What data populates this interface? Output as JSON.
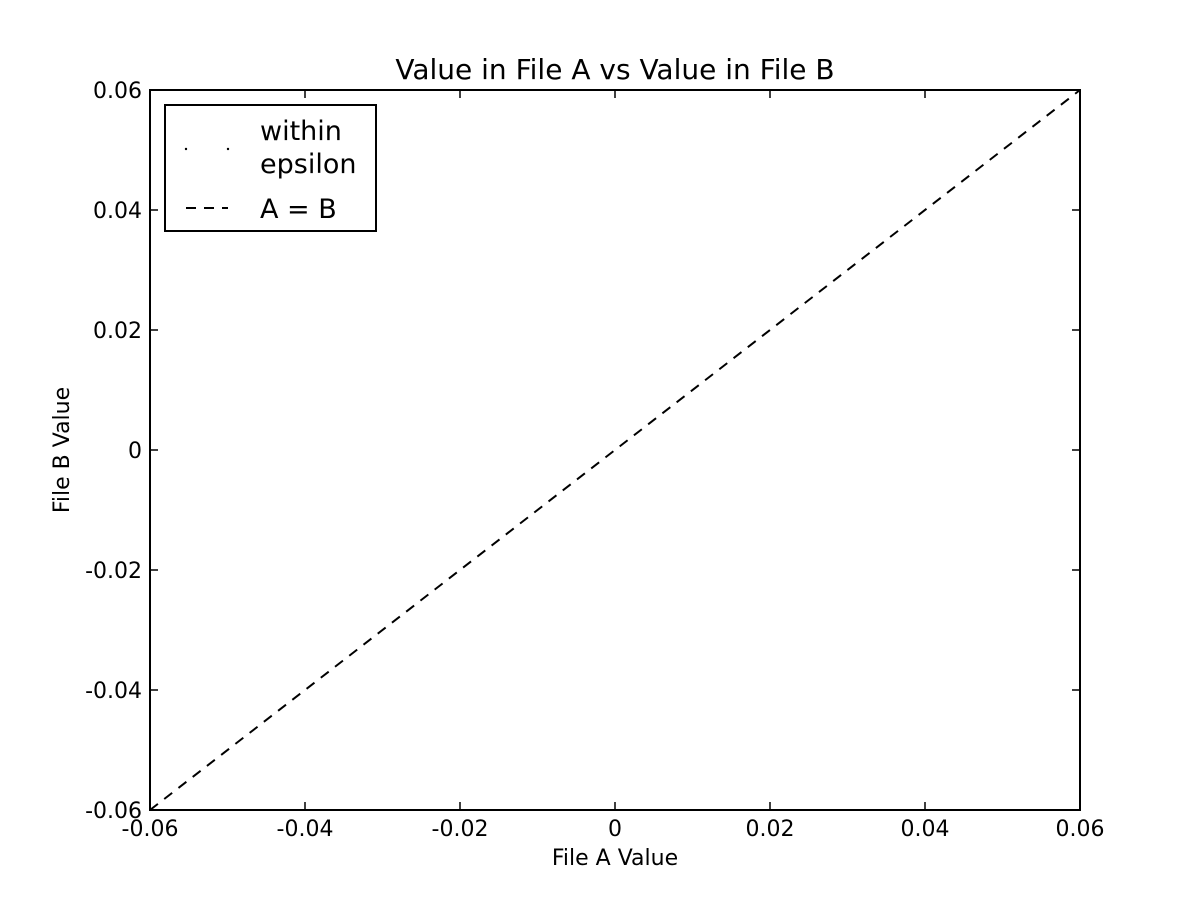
{
  "chart_data": {
    "type": "line",
    "title": "Value in File A vs Value in File B",
    "xlabel": "File A Value",
    "ylabel": "File B Value",
    "xlim": [
      -0.06,
      0.06
    ],
    "ylim": [
      -0.06,
      0.06
    ],
    "x_ticks": [
      -0.06,
      -0.04,
      -0.02,
      0,
      0.02,
      0.04,
      0.06
    ],
    "y_ticks": [
      -0.06,
      -0.04,
      -0.02,
      0,
      0.02,
      0.04,
      0.06
    ],
    "x_tick_labels": [
      "-0.06",
      "-0.04",
      "-0.02",
      "0",
      "0.02",
      "0.04",
      "0.06"
    ],
    "y_tick_labels": [
      "-0.06",
      "-0.04",
      "-0.02",
      "0",
      "0.02",
      "0.04",
      "0.06"
    ],
    "grid": false,
    "legend_position": "top-left",
    "series": [
      {
        "name": "within epsilon",
        "style": "points",
        "color": "#000000",
        "x": [],
        "y": []
      },
      {
        "name": "A = B",
        "style": "dashed",
        "color": "#000000",
        "x": [
          -0.06,
          0.06
        ],
        "y": [
          -0.06,
          0.06
        ]
      }
    ],
    "legend": [
      {
        "label_lines": [
          "within",
          "epsilon"
        ],
        "style": "points"
      },
      {
        "label_lines": [
          "A = B"
        ],
        "style": "dashed"
      }
    ]
  }
}
